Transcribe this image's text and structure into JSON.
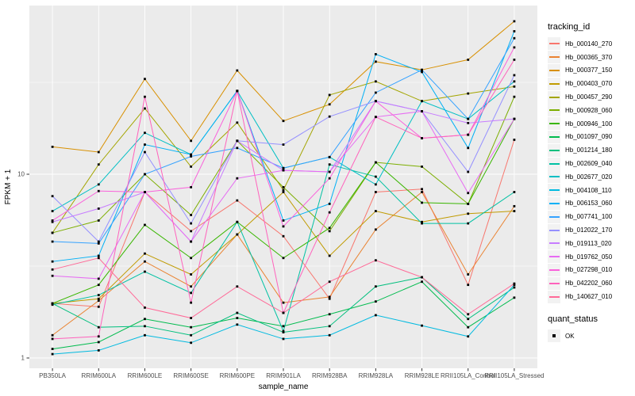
{
  "chart_data": {
    "type": "line",
    "title": "",
    "xlabel": "sample_name",
    "ylabel": "FPKM + 1",
    "y_scale": "log10",
    "ylim": [
      0.93,
      76
    ],
    "y_ticks": [
      1,
      10
    ],
    "y_minor_ticks": [
      3.162,
      31.62
    ],
    "grid": "white gridlines on gray panel",
    "legend_position": "right",
    "point_shape": "black-square",
    "categories": [
      "PB350LA",
      "RRIM600LA",
      "RRIM600LE",
      "RRIM600SE",
      "RRIM600PE",
      "RRIM901LA",
      "RRIM928BA",
      "RRIM928LA",
      "RRIM928LE",
      "RRII105LA_Control",
      "RRII105LA_Stressed"
    ],
    "series": [
      {
        "name": "Hb_000140_270",
        "color": "#F8766D",
        "values": [
          1.98,
          1.9,
          8.0,
          4.9,
          7.2,
          4.6,
          2.1,
          8.0,
          8.3,
          2.5,
          15.4
        ]
      },
      {
        "name": "Hb_000365_370",
        "color": "#EA8331",
        "values": [
          1.33,
          2.05,
          3.35,
          2.45,
          4.7,
          2.0,
          2.15,
          5.0,
          8.0,
          2.85,
          6.7
        ]
      },
      {
        "name": "Hb_000377_150",
        "color": "#D89000",
        "values": [
          14.1,
          13.2,
          33.0,
          15.2,
          36.7,
          19.5,
          24.0,
          41.0,
          37.0,
          42.0,
          68.0
        ]
      },
      {
        "name": "Hb_000403_070",
        "color": "#C09B00",
        "values": [
          1.98,
          2.1,
          3.7,
          2.85,
          4.7,
          8.0,
          3.6,
          6.3,
          5.5,
          6.1,
          6.3
        ]
      },
      {
        "name": "Hb_000457_290",
        "color": "#A3A500",
        "values": [
          4.8,
          11.3,
          22.8,
          11.0,
          19.1,
          8.2,
          27.0,
          32.0,
          25.0,
          27.5,
          30.0
        ]
      },
      {
        "name": "Hb_000928_060",
        "color": "#7CAE00",
        "values": [
          4.8,
          5.6,
          10.0,
          6.0,
          15.2,
          8.5,
          4.9,
          11.6,
          11.0,
          6.9,
          26.4
        ]
      },
      {
        "name": "Hb_000946_100",
        "color": "#39B600",
        "values": [
          1.98,
          2.5,
          5.3,
          3.5,
          5.5,
          3.5,
          5.1,
          11.6,
          7.0,
          6.9,
          20.0
        ]
      },
      {
        "name": "Hb_001097_090",
        "color": "#00BB4E",
        "values": [
          1.12,
          1.22,
          1.63,
          1.47,
          1.65,
          1.49,
          1.73,
          2.03,
          2.6,
          1.47,
          2.13
        ]
      },
      {
        "name": "Hb_001214_180",
        "color": "#00BF7D",
        "values": [
          1.98,
          1.47,
          1.49,
          1.33,
          1.76,
          1.38,
          1.49,
          2.45,
          2.75,
          1.63,
          2.42
        ]
      },
      {
        "name": "Hb_002609_040",
        "color": "#00C1A3",
        "values": [
          1.95,
          2.2,
          2.95,
          2.26,
          5.5,
          1.4,
          11.3,
          9.7,
          5.4,
          5.4,
          8.0
        ]
      },
      {
        "name": "Hb_002677_020",
        "color": "#00BFC4",
        "values": [
          6.3,
          8.8,
          16.8,
          12.8,
          28.4,
          10.8,
          12.4,
          8.8,
          25.0,
          20.0,
          32.0
        ]
      },
      {
        "name": "Hb_004108_110",
        "color": "#00BAE0",
        "values": [
          1.05,
          1.1,
          1.33,
          1.21,
          1.52,
          1.27,
          1.33,
          1.71,
          1.5,
          1.31,
          2.5
        ]
      },
      {
        "name": "Hb_006153_060",
        "color": "#00B0F6",
        "values": [
          3.35,
          3.6,
          14.5,
          12.8,
          28.4,
          5.6,
          6.9,
          45.0,
          36.0,
          13.9,
          60.0
        ]
      },
      {
        "name": "Hb_007741_100",
        "color": "#35A2FF",
        "values": [
          4.3,
          4.2,
          10.0,
          12.5,
          13.9,
          10.8,
          12.4,
          27.8,
          37.0,
          20.0,
          55.0
        ]
      },
      {
        "name": "Hb_012022_170",
        "color": "#9590FF",
        "values": [
          7.6,
          4.3,
          13.2,
          5.4,
          15.2,
          14.5,
          20.6,
          25.0,
          22.0,
          10.3,
          34.6
        ]
      },
      {
        "name": "Hb_019113_020",
        "color": "#C77CFF",
        "values": [
          5.5,
          6.5,
          8.0,
          4.3,
          15.2,
          10.5,
          10.3,
          25.0,
          22.0,
          19.0,
          20.0
        ]
      },
      {
        "name": "Hb_019762_050",
        "color": "#E76BF3",
        "values": [
          2.8,
          2.7,
          8.0,
          4.3,
          9.5,
          10.5,
          10.3,
          20.5,
          22.0,
          7.9,
          20.0
        ]
      },
      {
        "name": "Hb_027298_010",
        "color": "#FA62DB",
        "values": [
          5.6,
          8.1,
          8.0,
          8.5,
          28.4,
          5.2,
          9.5,
          25.0,
          15.7,
          16.4,
          49.0
        ]
      },
      {
        "name": "Hb_042202_060",
        "color": "#FF62BC",
        "values": [
          1.27,
          1.31,
          26.4,
          2.0,
          28.4,
          1.76,
          6.2,
          20.5,
          15.7,
          16.4,
          42.0
        ]
      },
      {
        "name": "Hb_140627_010",
        "color": "#FF6A98",
        "values": [
          3.03,
          3.5,
          1.88,
          1.65,
          2.45,
          1.76,
          2.6,
          3.4,
          2.75,
          1.73,
          2.54
        ]
      }
    ]
  },
  "legend": {
    "tracking_title": "tracking_id",
    "quant_title": "quant_status",
    "quant_label": "OK"
  },
  "style": {
    "panel_bg": "#EBEBEB",
    "grid_color": "#FFFFFF",
    "axis_text_color": "#4D4D4D",
    "axis_title_color": "#000000",
    "tick_color": "#333333",
    "point_color": "#000000",
    "legend_key_bg": "#F2F2F2"
  }
}
